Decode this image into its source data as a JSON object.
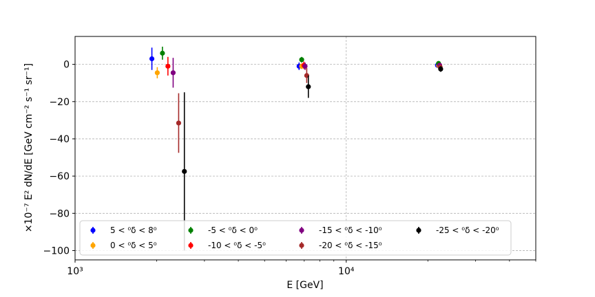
{
  "chart_data": {
    "type": "scatter",
    "title": "",
    "xlabel": "E [GeV]",
    "ylabel": "×10⁻⁷ E² dN/dE [GeV cm⁻² s⁻¹ sr⁻¹]",
    "x_scale": "log",
    "xlim": [
      1000,
      50000
    ],
    "ylim": [
      -105,
      15
    ],
    "x_major_ticks": [
      1000,
      10000
    ],
    "x_major_tick_labels": [
      "10³",
      "10⁴"
    ],
    "y_ticks": [
      0,
      -20,
      -40,
      -60,
      -80,
      -100
    ],
    "y_tick_labels": [
      "0",
      "−20",
      "−40",
      "−60",
      "−80",
      "−100"
    ],
    "grid": true,
    "legend_position": "lower-left",
    "legend_columns": 4,
    "series": [
      {
        "name": "5 < ⁰δ < 8⁰",
        "color": "#0000ff",
        "points": [
          {
            "x": 1920,
            "y": 3,
            "err": 6
          },
          {
            "x": 6700,
            "y": -1,
            "err": 2
          },
          {
            "x": 21700,
            "y": -0.5,
            "err": 1
          }
        ]
      },
      {
        "name": "0 < ⁰δ < 5⁰",
        "color": "#ffa500",
        "points": [
          {
            "x": 2010,
            "y": -4.5,
            "err": 3
          },
          {
            "x": 6850,
            "y": -1,
            "err": 1.5
          },
          {
            "x": 21900,
            "y": -0.5,
            "err": 1
          }
        ]
      },
      {
        "name": "-5 < ⁰δ < 0⁰",
        "color": "#008000",
        "points": [
          {
            "x": 2100,
            "y": 6,
            "err": 3.5
          },
          {
            "x": 6850,
            "y": 2.5,
            "err": 1.5
          },
          {
            "x": 21900,
            "y": 0.5,
            "err": 1
          }
        ]
      },
      {
        "name": "-10 < ⁰δ < -5⁰",
        "color": "#ff0000",
        "points": [
          {
            "x": 2200,
            "y": -1,
            "err": 5
          },
          {
            "x": 6980,
            "y": -0.5,
            "err": 2
          },
          {
            "x": 22100,
            "y": -0.5,
            "err": 1
          }
        ]
      },
      {
        "name": "-15 < ⁰δ < -10⁰",
        "color": "#800080",
        "points": [
          {
            "x": 2300,
            "y": -4.5,
            "err": 8
          },
          {
            "x": 7050,
            "y": -1,
            "err": 2
          },
          {
            "x": 22100,
            "y": -0.5,
            "err": 1
          }
        ]
      },
      {
        "name": "-20 < ⁰δ < -15⁰",
        "color": "#a52a2a",
        "points": [
          {
            "x": 2410,
            "y": -31.5,
            "err": 16
          },
          {
            "x": 7150,
            "y": -6,
            "err": 4
          },
          {
            "x": 22200,
            "y": -1.5,
            "err": 1
          }
        ]
      },
      {
        "name": "-25 < ⁰δ < -20⁰",
        "color": "#000000",
        "points": [
          {
            "x": 2530,
            "y": -57.5,
            "err": 42.5
          },
          {
            "x": 7250,
            "y": -12,
            "err": 6
          },
          {
            "x": 22300,
            "y": -2.5,
            "err": 1.5
          }
        ]
      }
    ]
  }
}
